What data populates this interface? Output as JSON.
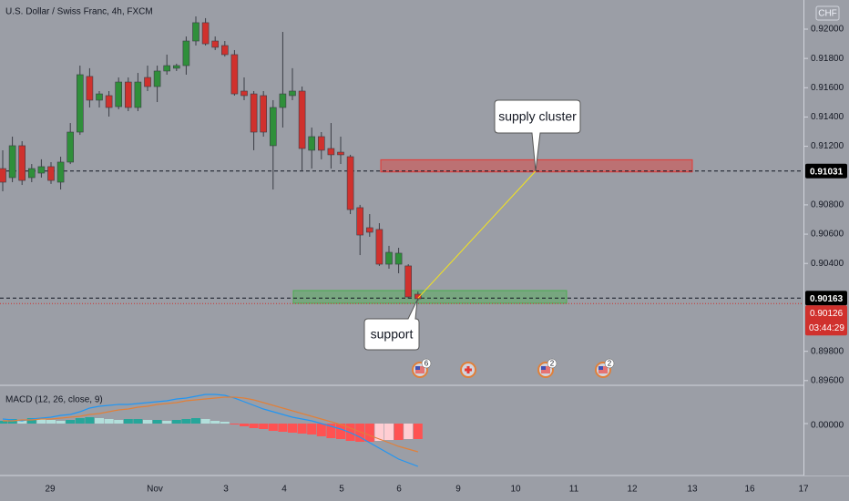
{
  "header": {
    "title": "U.S. Dollar / Swiss Franc, 4h, FXCM",
    "currency": "CHF"
  },
  "chart_data": [
    {
      "type": "candlestick",
      "open": [
        0.91048,
        0.90986,
        0.91204,
        0.90986,
        0.91017,
        0.91061,
        0.90955,
        0.91092,
        0.91297,
        0.91677,
        0.91515,
        0.91546,
        0.91471,
        0.91639,
        0.91465,
        0.9167,
        0.91608,
        0.91714,
        0.91733,
        0.91751,
        0.91919,
        0.92044,
        0.91919,
        0.91888,
        0.91826,
        0.91577,
        0.91558,
        0.91546,
        0.91204,
        0.91465,
        0.91546,
        0.91577,
        0.91173,
        0.91266,
        0.91185,
        0.9116,
        0.91129,
        0.90781,
        0.90644,
        0.90632,
        0.90395,
        0.90395,
        0.90383,
        0.9019
      ],
      "high": [
        0.91173,
        0.91266,
        0.91235,
        0.91079,
        0.91111,
        0.91092,
        0.91129,
        0.91359,
        0.91751,
        0.91733,
        0.91577,
        0.91577,
        0.9167,
        0.9167,
        0.91701,
        0.91751,
        0.91751,
        0.91826,
        0.91764,
        0.9195,
        0.92087,
        0.92075,
        0.9195,
        0.91919,
        0.91857,
        0.9167,
        0.91577,
        0.91577,
        0.91515,
        0.91981,
        0.91733,
        0.91608,
        0.91328,
        0.91297,
        0.91359,
        0.91266,
        0.91142,
        0.908,
        0.90737,
        0.90675,
        0.9052,
        0.90507,
        0.90395,
        0.90209
      ],
      "low": [
        0.90893,
        0.90955,
        0.90936,
        0.90955,
        0.90986,
        0.90943,
        0.90905,
        0.91079,
        0.91278,
        0.91465,
        0.91465,
        0.91403,
        0.91453,
        0.9144,
        0.9144,
        0.91577,
        0.91502,
        0.91689,
        0.91714,
        0.91689,
        0.91888,
        0.91888,
        0.91857,
        0.91813,
        0.91546,
        0.91515,
        0.91173,
        0.91266,
        0.90905,
        0.91328,
        0.91515,
        0.91036,
        0.91048,
        0.91111,
        0.91048,
        0.91079,
        0.90737,
        0.90457,
        0.90582,
        0.90383,
        0.90364,
        0.90333,
        0.90159,
        0.90146
      ],
      "close": [
        0.90955,
        0.91204,
        0.90967,
        0.91048,
        0.91061,
        0.90967,
        0.91092,
        0.91297,
        0.91689,
        0.91515,
        0.91558,
        0.91465,
        0.91639,
        0.91465,
        0.91639,
        0.91608,
        0.91714,
        0.91751,
        0.91751,
        0.91919,
        0.92044,
        0.919,
        0.91876,
        0.91826,
        0.91558,
        0.91546,
        0.91297,
        0.91297,
        0.91465,
        0.91558,
        0.91577,
        0.91185,
        0.91266,
        0.91173,
        0.91142,
        0.91142,
        0.90768,
        0.90594,
        0.90613,
        0.90395,
        0.90476,
        0.9047,
        0.90171,
        0.90159
      ],
      "up_color": "#2f8f3a",
      "down_color": "#d0312d",
      "ylim": [
        0.89574,
        0.92199
      ],
      "yticks": [
        {
          "value": 0.92,
          "label": "0.92000"
        },
        {
          "value": 0.918,
          "label": "0.91800"
        },
        {
          "value": 0.916,
          "label": "0.91600"
        },
        {
          "value": 0.914,
          "label": "0.91400"
        },
        {
          "value": 0.912,
          "label": "0.91200"
        },
        {
          "value": 0.908,
          "label": "0.90800"
        },
        {
          "value": 0.906,
          "label": "0.90600"
        },
        {
          "value": 0.904,
          "label": "0.90400"
        },
        {
          "value": 0.898,
          "label": "0.89800"
        },
        {
          "value": 0.896,
          "label": "0.89600"
        }
      ],
      "xtick_labels": [
        "29",
        "Nov",
        "3",
        "4",
        "5",
        "6",
        "9",
        "10",
        "11",
        "12",
        "13",
        "16",
        "17"
      ],
      "price_levels": [
        {
          "value": 0.91031,
          "color": "#000000"
        },
        {
          "value": 0.90163,
          "color": "#000000"
        }
      ],
      "last_price": {
        "value": 0.90126,
        "countdown": "03:44:29",
        "color": "#d0312d"
      },
      "zones": [
        {
          "top": 0.91108,
          "bottom": 0.91025,
          "color": "#e53935"
        },
        {
          "top": 0.90215,
          "bottom": 0.90128,
          "color": "#4caf50"
        }
      ],
      "callouts": [
        "supply cluster",
        "support"
      ],
      "event_badges": [
        "6",
        "2",
        "2"
      ]
    },
    {
      "type": "macd",
      "title": "MACD (12, 26, close, 9)",
      "histogram": [
        6e-05,
        0.0001,
        8e-05,
        0.00012,
        0.0001,
        8e-05,
        6e-05,
        8e-05,
        0.00012,
        0.00014,
        0.00012,
        0.0001,
        8e-05,
        0.0001,
        0.0001,
        8e-05,
        8e-05,
        6e-05,
        8e-05,
        0.0001,
        0.00012,
        0.0001,
        6e-05,
        4e-05,
        -2e-05,
        -6e-05,
        -0.0001,
        -0.00012,
        -0.00016,
        -0.00018,
        -0.0002,
        -0.00022,
        -0.00024,
        -0.00028,
        -0.00032,
        -0.00034,
        -0.00038,
        -0.0004,
        -0.0004,
        -0.00038,
        -0.00036,
        -0.00036,
        -0.00034,
        -0.00034
      ],
      "hist_colors": [
        "#26a69a",
        "#b2dfdb",
        "#ff5252",
        "#ffcdd2"
      ],
      "series": [
        {
          "color": "#2196f3",
          "values": [
            0.0001,
            8e-05,
            6e-05,
            0.0001,
            0.00012,
            0.00014,
            0.00018,
            0.0002,
            0.00026,
            0.00034,
            0.00038,
            0.0004,
            0.00042,
            0.00042,
            0.00044,
            0.00046,
            0.00048,
            0.0005,
            0.00054,
            0.00056,
            0.0006,
            0.00064,
            0.00064,
            0.00062,
            0.00056,
            0.00048,
            0.0004,
            0.00032,
            0.00026,
            0.0002,
            0.00014,
            0.0001,
            6e-05,
            0,
            -6e-05,
            -0.00012,
            -0.0002,
            -0.0003,
            -0.00042,
            -0.00054,
            -0.00066,
            -0.00078,
            -0.00086,
            -0.00094
          ]
        },
        {
          "color": "#e0803a",
          "values": [
            6e-05,
            6e-05,
            8e-05,
            8e-05,
            0.0001,
            0.0001,
            0.00012,
            0.00014,
            0.00016,
            0.0002,
            0.00022,
            0.00026,
            0.0003,
            0.00032,
            0.00036,
            0.00038,
            0.00042,
            0.00044,
            0.00046,
            0.0005,
            0.00052,
            0.00054,
            0.00056,
            0.00058,
            0.00058,
            0.00056,
            0.00052,
            0.00046,
            0.0004,
            0.00034,
            0.00028,
            0.00022,
            0.00016,
            0.0001,
            4e-05,
            -2e-05,
            -0.0001,
            -0.00018,
            -0.00026,
            -0.00034,
            -0.00042,
            -0.0005,
            -0.00056,
            -0.00062
          ]
        }
      ],
      "ylim": [
        -0.0011,
        0.00082
      ],
      "yticks": [
        {
          "value": 0,
          "label": "0.00000"
        }
      ]
    }
  ]
}
